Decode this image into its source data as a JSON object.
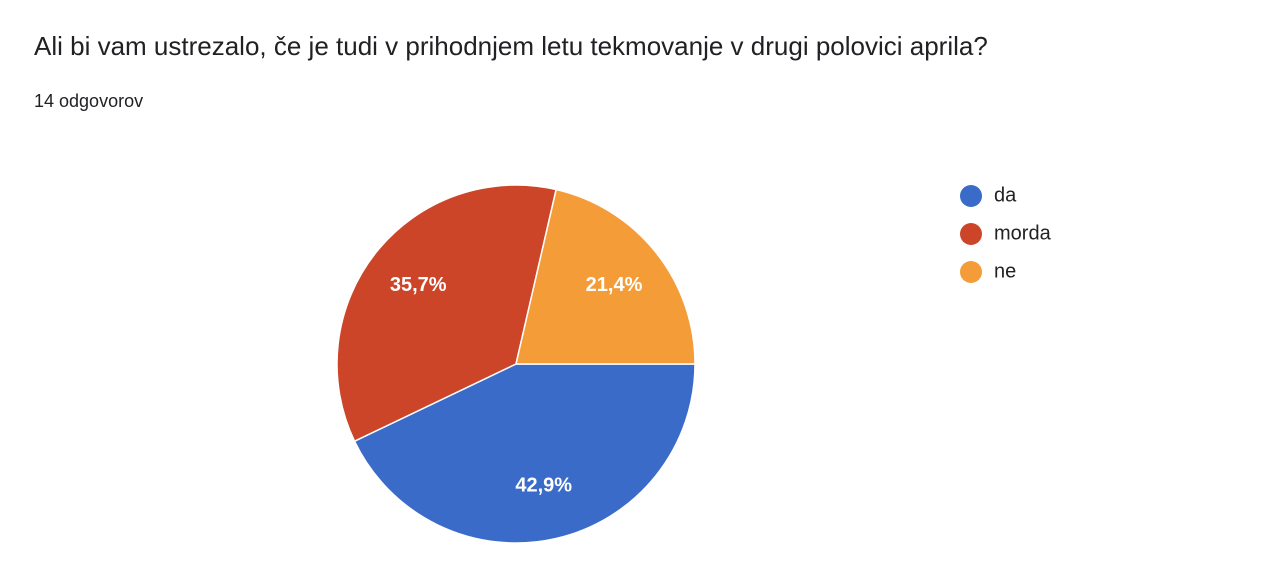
{
  "chart_data": {
    "type": "pie",
    "title": "Ali bi vam ustrezalo, če je tudi v prihodnjem letu tekmovanje v drugi polovici aprila?",
    "subtitle": "14 odgovorov",
    "categories": [
      "da",
      "morda",
      "ne"
    ],
    "values": [
      42.9,
      35.7,
      21.4
    ],
    "value_labels": [
      "42,9%",
      "35,7%",
      "21,4%"
    ],
    "colors": [
      "#3b6bc8",
      "#cc4528",
      "#f39c38"
    ]
  }
}
